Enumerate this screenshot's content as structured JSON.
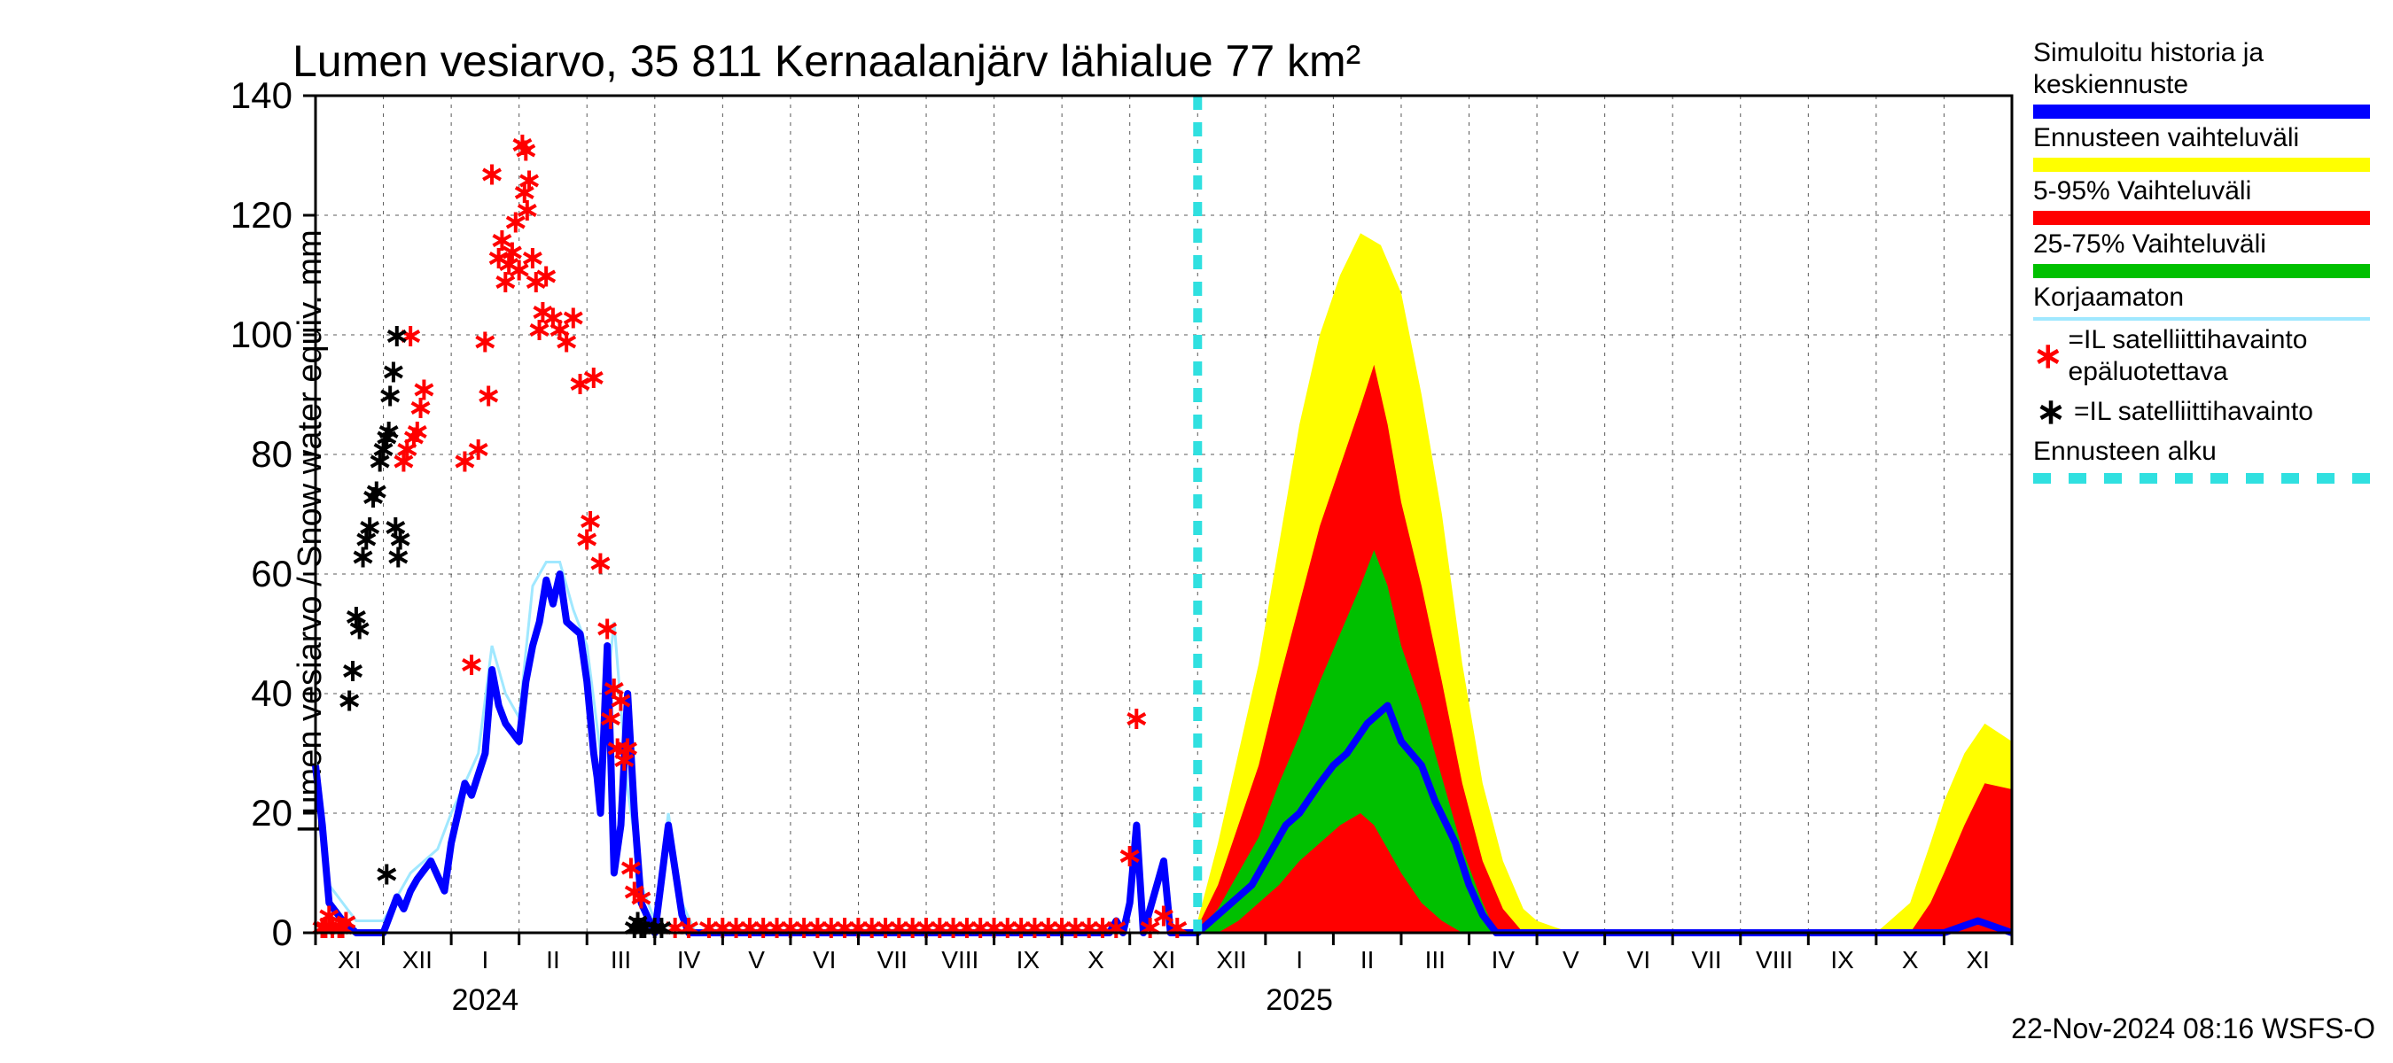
{
  "title": "Lumen vesiarvo, 35 811 Kernaalanjärv lähialue 77 km²",
  "ylabel": "Lumen vesiarvo / Snow water equiv.    mm",
  "footer": "22-Nov-2024 08:16 WSFS-O",
  "colors": {
    "axis": "#000000",
    "grid": "#000000",
    "bg": "#ffffff",
    "simulated": "#0000ff",
    "forecast_wide": "#ffff00",
    "forecast_p5_95": "#ff0000",
    "forecast_p25_75": "#00c000",
    "uncorrected": "#a0e8ff",
    "sat_unreliable": "#ff0000",
    "sat_reliable": "#000000",
    "forecast_start": "#30e0e0"
  },
  "chart": {
    "type": "line+area+scatter",
    "font_family": "Arial",
    "title_fontsize": 50,
    "ylabel_fontsize": 38,
    "tick_fontsize_y": 42,
    "tick_fontsize_x": 28,
    "year_fontsize": 34,
    "footer_fontsize": 32,
    "line_width_main": 8,
    "line_width_thin": 3,
    "marker_size": 16,
    "grid_dash": "4 6",
    "forecast_dash": "16 14",
    "forecast_line_width": 10
  },
  "axes": {
    "ymin": 0,
    "ymax": 140,
    "ytick_step": 20,
    "yticks": [
      0,
      20,
      40,
      60,
      80,
      100,
      120,
      140
    ],
    "x_start_month_index": 0,
    "x_months": [
      "XI",
      "XII",
      "I",
      "II",
      "III",
      "IV",
      "V",
      "VI",
      "VII",
      "VIII",
      "IX",
      "X",
      "XI",
      "XII",
      "I",
      "II",
      "III",
      "IV",
      "V",
      "VI",
      "VII",
      "VIII",
      "IX",
      "X",
      "XI"
    ],
    "year_labels": [
      {
        "label": "2024",
        "month_index": 2.5
      },
      {
        "label": "2025",
        "month_index": 14.5
      }
    ],
    "n_months": 25
  },
  "forecast_start_month": 13.0,
  "blue_line": [
    [
      0.0,
      28
    ],
    [
      0.1,
      18
    ],
    [
      0.2,
      5
    ],
    [
      0.4,
      2
    ],
    [
      0.6,
      0
    ],
    [
      0.8,
      0
    ],
    [
      1.0,
      0
    ],
    [
      1.1,
      3
    ],
    [
      1.2,
      6
    ],
    [
      1.3,
      4
    ],
    [
      1.4,
      7
    ],
    [
      1.5,
      9
    ],
    [
      1.7,
      12
    ],
    [
      1.9,
      7
    ],
    [
      2.0,
      15
    ],
    [
      2.1,
      20
    ],
    [
      2.2,
      25
    ],
    [
      2.3,
      23
    ],
    [
      2.5,
      30
    ],
    [
      2.6,
      44
    ],
    [
      2.7,
      38
    ],
    [
      2.8,
      35
    ],
    [
      3.0,
      32
    ],
    [
      3.1,
      42
    ],
    [
      3.2,
      48
    ],
    [
      3.3,
      52
    ],
    [
      3.4,
      59
    ],
    [
      3.5,
      55
    ],
    [
      3.6,
      60
    ],
    [
      3.7,
      52
    ],
    [
      3.8,
      51
    ],
    [
      3.9,
      50
    ],
    [
      4.0,
      42
    ],
    [
      4.1,
      30
    ],
    [
      4.15,
      26
    ],
    [
      4.2,
      20
    ],
    [
      4.3,
      48
    ],
    [
      4.35,
      30
    ],
    [
      4.4,
      10
    ],
    [
      4.5,
      18
    ],
    [
      4.6,
      40
    ],
    [
      4.7,
      20
    ],
    [
      4.8,
      5
    ],
    [
      5.0,
      0
    ],
    [
      5.2,
      18
    ],
    [
      5.4,
      3
    ],
    [
      5.5,
      0
    ],
    [
      6.0,
      0
    ],
    [
      7.0,
      0
    ],
    [
      8.0,
      0
    ],
    [
      9.0,
      0
    ],
    [
      10.0,
      0
    ],
    [
      11.0,
      0
    ],
    [
      11.7,
      0
    ],
    [
      11.8,
      2
    ],
    [
      11.9,
      0
    ],
    [
      12.0,
      5
    ],
    [
      12.1,
      18
    ],
    [
      12.2,
      0
    ],
    [
      12.5,
      12
    ],
    [
      12.6,
      0
    ],
    [
      12.8,
      0
    ],
    [
      13.0,
      0
    ],
    [
      13.2,
      2
    ],
    [
      13.5,
      5
    ],
    [
      13.8,
      8
    ],
    [
      14.0,
      12
    ],
    [
      14.3,
      18
    ],
    [
      14.5,
      20
    ],
    [
      14.8,
      25
    ],
    [
      15.0,
      28
    ],
    [
      15.2,
      30
    ],
    [
      15.5,
      35
    ],
    [
      15.8,
      38
    ],
    [
      16.0,
      32
    ],
    [
      16.3,
      28
    ],
    [
      16.5,
      22
    ],
    [
      16.8,
      15
    ],
    [
      17.0,
      8
    ],
    [
      17.2,
      3
    ],
    [
      17.4,
      0
    ],
    [
      18.0,
      0
    ],
    [
      19.0,
      0
    ],
    [
      20.0,
      0
    ],
    [
      21.0,
      0
    ],
    [
      22.0,
      0
    ],
    [
      23.0,
      0
    ],
    [
      24.0,
      0
    ],
    [
      24.5,
      2
    ],
    [
      25.0,
      0
    ]
  ],
  "uncorrected_line": [
    [
      0.0,
      29
    ],
    [
      0.2,
      8
    ],
    [
      0.6,
      2
    ],
    [
      1.0,
      2
    ],
    [
      1.4,
      10
    ],
    [
      1.8,
      14
    ],
    [
      2.0,
      20
    ],
    [
      2.4,
      30
    ],
    [
      2.6,
      48
    ],
    [
      2.8,
      40
    ],
    [
      3.0,
      36
    ],
    [
      3.2,
      58
    ],
    [
      3.4,
      62
    ],
    [
      3.6,
      62
    ],
    [
      3.8,
      54
    ],
    [
      4.0,
      48
    ],
    [
      4.2,
      30
    ],
    [
      4.4,
      52
    ],
    [
      4.6,
      24
    ],
    [
      4.8,
      8
    ],
    [
      5.0,
      2
    ],
    [
      5.2,
      20
    ],
    [
      5.4,
      5
    ],
    [
      5.6,
      0
    ]
  ],
  "yellow_band": {
    "upper": [
      [
        13.0,
        2
      ],
      [
        13.3,
        15
      ],
      [
        13.6,
        30
      ],
      [
        13.9,
        45
      ],
      [
        14.2,
        65
      ],
      [
        14.5,
        85
      ],
      [
        14.8,
        100
      ],
      [
        15.1,
        110
      ],
      [
        15.4,
        117
      ],
      [
        15.7,
        115
      ],
      [
        16.0,
        107
      ],
      [
        16.3,
        90
      ],
      [
        16.6,
        70
      ],
      [
        16.9,
        45
      ],
      [
        17.2,
        25
      ],
      [
        17.5,
        12
      ],
      [
        17.8,
        4
      ],
      [
        18.0,
        2
      ],
      [
        18.5,
        0
      ],
      [
        19.0,
        0
      ],
      [
        23.0,
        0
      ],
      [
        23.5,
        5
      ],
      [
        23.8,
        15
      ],
      [
        24.0,
        22
      ],
      [
        24.3,
        30
      ],
      [
        24.6,
        35
      ],
      [
        25.0,
        32
      ]
    ],
    "lower": [
      [
        13.0,
        0
      ],
      [
        14.0,
        0
      ],
      [
        15.0,
        0
      ],
      [
        16.0,
        0
      ],
      [
        17.0,
        0
      ],
      [
        18.0,
        0
      ],
      [
        23.0,
        0
      ],
      [
        25.0,
        0
      ]
    ]
  },
  "red_band": {
    "upper": [
      [
        13.0,
        1
      ],
      [
        13.3,
        8
      ],
      [
        13.6,
        18
      ],
      [
        13.9,
        28
      ],
      [
        14.2,
        42
      ],
      [
        14.5,
        55
      ],
      [
        14.8,
        68
      ],
      [
        15.1,
        78
      ],
      [
        15.4,
        88
      ],
      [
        15.6,
        95
      ],
      [
        15.8,
        85
      ],
      [
        16.0,
        72
      ],
      [
        16.3,
        58
      ],
      [
        16.6,
        42
      ],
      [
        16.9,
        25
      ],
      [
        17.2,
        12
      ],
      [
        17.5,
        4
      ],
      [
        17.8,
        0
      ],
      [
        23.5,
        0
      ],
      [
        23.8,
        5
      ],
      [
        24.0,
        10
      ],
      [
        24.3,
        18
      ],
      [
        24.6,
        25
      ],
      [
        25.0,
        24
      ]
    ],
    "lower": [
      [
        13.0,
        0
      ],
      [
        14.0,
        0
      ],
      [
        15.0,
        0
      ],
      [
        16.0,
        0
      ],
      [
        17.0,
        0
      ],
      [
        17.8,
        0
      ],
      [
        25.0,
        0
      ]
    ]
  },
  "green_band": {
    "upper": [
      [
        13.0,
        0
      ],
      [
        13.3,
        4
      ],
      [
        13.6,
        10
      ],
      [
        13.9,
        16
      ],
      [
        14.2,
        25
      ],
      [
        14.5,
        33
      ],
      [
        14.8,
        42
      ],
      [
        15.1,
        50
      ],
      [
        15.4,
        58
      ],
      [
        15.6,
        64
      ],
      [
        15.8,
        58
      ],
      [
        16.0,
        48
      ],
      [
        16.3,
        38
      ],
      [
        16.6,
        26
      ],
      [
        16.9,
        14
      ],
      [
        17.2,
        5
      ],
      [
        17.4,
        0
      ]
    ],
    "lower": [
      [
        13.0,
        0
      ],
      [
        13.3,
        0
      ],
      [
        13.6,
        2
      ],
      [
        13.9,
        5
      ],
      [
        14.2,
        8
      ],
      [
        14.5,
        12
      ],
      [
        14.8,
        15
      ],
      [
        15.1,
        18
      ],
      [
        15.4,
        20
      ],
      [
        15.6,
        18
      ],
      [
        15.8,
        14
      ],
      [
        16.0,
        10
      ],
      [
        16.3,
        5
      ],
      [
        16.6,
        2
      ],
      [
        16.9,
        0
      ],
      [
        17.4,
        0
      ]
    ]
  },
  "black_markers": [
    [
      0.5,
      38
    ],
    [
      0.55,
      43
    ],
    [
      0.6,
      52
    ],
    [
      0.65,
      50
    ],
    [
      0.7,
      62
    ],
    [
      0.75,
      65
    ],
    [
      0.8,
      67
    ],
    [
      0.85,
      72
    ],
    [
      0.9,
      73
    ],
    [
      0.95,
      78
    ],
    [
      1.0,
      80
    ],
    [
      1.05,
      82
    ],
    [
      1.08,
      83
    ],
    [
      1.1,
      89
    ],
    [
      1.15,
      93
    ],
    [
      1.18,
      67
    ],
    [
      1.2,
      99
    ],
    [
      1.22,
      62
    ],
    [
      1.25,
      65
    ],
    [
      1.05,
      9
    ],
    [
      4.7,
      0
    ],
    [
      4.75,
      1
    ],
    [
      4.8,
      0
    ],
    [
      4.85,
      0
    ],
    [
      5.0,
      0
    ],
    [
      5.1,
      0
    ]
  ],
  "red_markers": [
    [
      0.1,
      0
    ],
    [
      0.15,
      0
    ],
    [
      0.2,
      2
    ],
    [
      0.25,
      0
    ],
    [
      0.35,
      0
    ],
    [
      0.4,
      0
    ],
    [
      0.45,
      1
    ],
    [
      1.3,
      78
    ],
    [
      1.35,
      80
    ],
    [
      1.4,
      99
    ],
    [
      1.45,
      82
    ],
    [
      1.5,
      83
    ],
    [
      1.55,
      87
    ],
    [
      1.6,
      90
    ],
    [
      2.2,
      78
    ],
    [
      2.3,
      44
    ],
    [
      2.4,
      80
    ],
    [
      2.5,
      98
    ],
    [
      2.55,
      89
    ],
    [
      2.6,
      126
    ],
    [
      2.7,
      112
    ],
    [
      2.75,
      115
    ],
    [
      2.8,
      108
    ],
    [
      2.85,
      111
    ],
    [
      2.9,
      113
    ],
    [
      2.95,
      118
    ],
    [
      3.0,
      110
    ],
    [
      3.05,
      131
    ],
    [
      3.08,
      123
    ],
    [
      3.1,
      130
    ],
    [
      3.12,
      120
    ],
    [
      3.15,
      125
    ],
    [
      3.2,
      112
    ],
    [
      3.25,
      108
    ],
    [
      3.3,
      100
    ],
    [
      3.35,
      103
    ],
    [
      3.4,
      109
    ],
    [
      3.5,
      102
    ],
    [
      3.6,
      100
    ],
    [
      3.7,
      98
    ],
    [
      3.8,
      102
    ],
    [
      3.9,
      91
    ],
    [
      4.0,
      65
    ],
    [
      4.05,
      68
    ],
    [
      4.1,
      92
    ],
    [
      4.2,
      61
    ],
    [
      4.3,
      50
    ],
    [
      4.35,
      35
    ],
    [
      4.4,
      40
    ],
    [
      4.45,
      30
    ],
    [
      4.5,
      38
    ],
    [
      4.55,
      28
    ],
    [
      4.6,
      30
    ],
    [
      4.65,
      10
    ],
    [
      4.7,
      6
    ],
    [
      4.8,
      5
    ],
    [
      5.3,
      0
    ],
    [
      5.5,
      0
    ],
    [
      5.8,
      0
    ],
    [
      6.0,
      0
    ],
    [
      6.2,
      0
    ],
    [
      6.4,
      0
    ],
    [
      6.6,
      0
    ],
    [
      6.8,
      0
    ],
    [
      7.0,
      0
    ],
    [
      7.2,
      0
    ],
    [
      7.4,
      0
    ],
    [
      7.6,
      0
    ],
    [
      7.8,
      0
    ],
    [
      8.0,
      0
    ],
    [
      8.2,
      0
    ],
    [
      8.4,
      0
    ],
    [
      8.6,
      0
    ],
    [
      8.8,
      0
    ],
    [
      9.0,
      0
    ],
    [
      9.2,
      0
    ],
    [
      9.4,
      0
    ],
    [
      9.6,
      0
    ],
    [
      9.8,
      0
    ],
    [
      10.0,
      0
    ],
    [
      10.2,
      0
    ],
    [
      10.4,
      0
    ],
    [
      10.6,
      0
    ],
    [
      10.8,
      0
    ],
    [
      11.0,
      0
    ],
    [
      11.2,
      0
    ],
    [
      11.4,
      0
    ],
    [
      11.6,
      0
    ],
    [
      11.8,
      0
    ],
    [
      12.0,
      12
    ],
    [
      12.1,
      35
    ],
    [
      12.3,
      0
    ],
    [
      12.5,
      2
    ],
    [
      12.7,
      0
    ]
  ],
  "legend": {
    "items": [
      {
        "type": "swatch",
        "label": "Simuloitu historia ja keskiennuste",
        "color": "#0000ff",
        "h": 16
      },
      {
        "type": "swatch",
        "label": "Ennusteen vaihteluväli",
        "color": "#ffff00",
        "h": 16
      },
      {
        "type": "swatch",
        "label": "5-95% Vaihteluväli",
        "color": "#ff0000",
        "h": 16
      },
      {
        "type": "swatch",
        "label": "25-75% Vaihteluväli",
        "color": "#00c000",
        "h": 16
      },
      {
        "type": "swatch",
        "label": "Korjaamaton",
        "color": "#a0e8ff",
        "h": 4
      },
      {
        "type": "marker",
        "label": "=IL satelliittihavainto epäluotettava",
        "glyph": "∗",
        "color": "#ff0000"
      },
      {
        "type": "marker",
        "label": "=IL satelliittihavainto",
        "glyph": "∗",
        "color": "#000000"
      },
      {
        "type": "dash",
        "label": "Ennusteen alku",
        "color": "#30e0e0"
      }
    ]
  }
}
